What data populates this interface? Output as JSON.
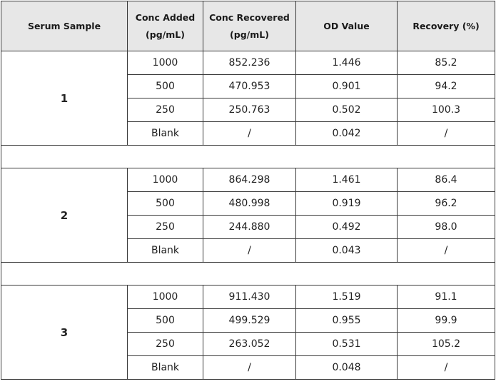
{
  "table": {
    "header": [
      [
        "Serum Sample"
      ],
      [
        "Conc Added",
        "(pg/mL)"
      ],
      [
        "Conc Recovered",
        "(pg/mL)"
      ],
      [
        "OD Value"
      ],
      [
        "Recovery (%)"
      ]
    ],
    "groups": [
      {
        "sample": "1",
        "rows": [
          [
            "1000",
            "852.236",
            "1.446",
            "85.2"
          ],
          [
            "500",
            "470.953",
            "0.901",
            "94.2"
          ],
          [
            "250",
            "250.763",
            "0.502",
            "100.3"
          ],
          [
            "Blank",
            "/",
            "0.042",
            "/"
          ]
        ]
      },
      {
        "sample": "2",
        "rows": [
          [
            "1000",
            "864.298",
            "1.461",
            "86.4"
          ],
          [
            "500",
            "480.998",
            "0.919",
            "96.2"
          ],
          [
            "250",
            "244.880",
            "0.492",
            "98.0"
          ],
          [
            "Blank",
            "/",
            "0.043",
            "/"
          ]
        ]
      },
      {
        "sample": "3",
        "rows": [
          [
            "1000",
            "911.430",
            "1.519",
            "91.1"
          ],
          [
            "500",
            "499.529",
            "0.955",
            "99.9"
          ],
          [
            "250",
            "263.052",
            "0.531",
            "105.2"
          ],
          [
            "Blank",
            "/",
            "0.048",
            "/"
          ]
        ]
      }
    ]
  }
}
